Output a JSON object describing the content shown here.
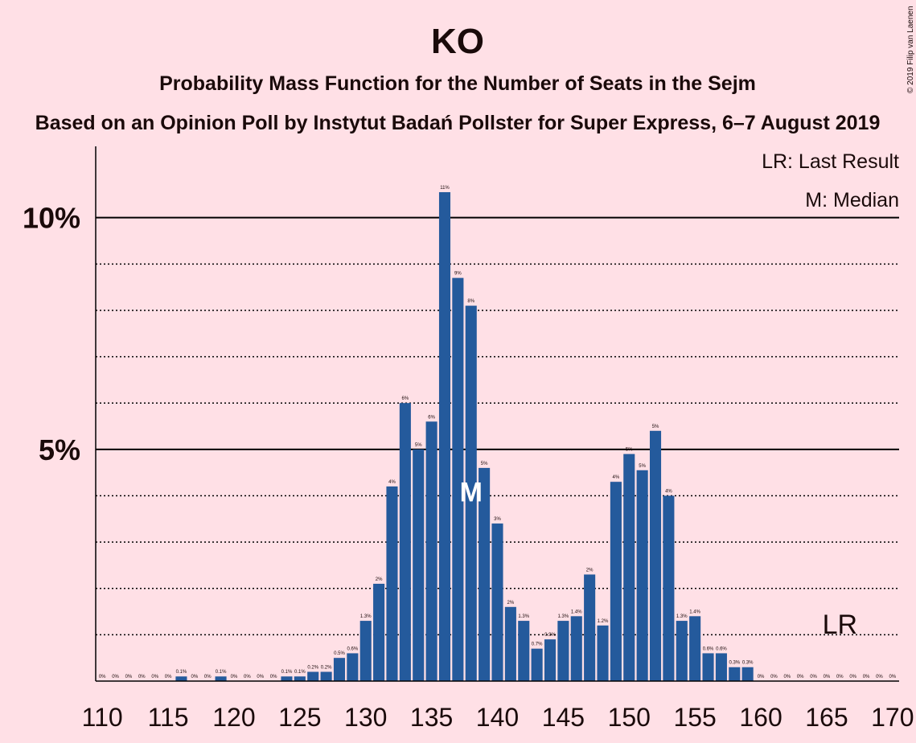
{
  "chart_data": {
    "type": "bar",
    "title": "KO",
    "subtitle": "Probability Mass Function for the Number of Seats in the Sejm",
    "subtitle2": "Based on an Opinion Poll by Instytut Badań Pollster for Super Express, 6–7 August 2019",
    "copyright": "© 2019 Filip van Laenen",
    "legend": [
      "LR: Last Result",
      "M: Median"
    ],
    "median": {
      "label": "M",
      "x": 138
    },
    "last_result": {
      "label": "LR",
      "x": 166
    },
    "color": "#245a9c",
    "x": [
      110,
      111,
      112,
      113,
      114,
      115,
      116,
      117,
      118,
      119,
      120,
      121,
      122,
      123,
      124,
      125,
      126,
      127,
      128,
      129,
      130,
      131,
      132,
      133,
      134,
      135,
      136,
      137,
      138,
      139,
      140,
      141,
      142,
      143,
      144,
      145,
      146,
      147,
      148,
      149,
      150,
      151,
      152,
      153,
      154,
      155,
      156,
      157,
      158,
      159,
      160,
      161,
      162,
      163,
      164,
      165,
      166,
      167,
      168,
      169,
      170
    ],
    "values": [
      0,
      0,
      0,
      0,
      0,
      0,
      0.1,
      0,
      0,
      0.1,
      0,
      0,
      0,
      0,
      0.1,
      0.1,
      0.2,
      0.2,
      0.5,
      0.6,
      1.3,
      2.1,
      4.2,
      6.0,
      5.0,
      5.6,
      10.55,
      8.7,
      8.1,
      4.6,
      3.4,
      1.6,
      1.3,
      0.7,
      0.9,
      1.3,
      1.4,
      2.3,
      1.2,
      4.3,
      4.9,
      4.55,
      5.4,
      4.0,
      1.3,
      1.4,
      0.6,
      0.6,
      0.3,
      0.3,
      0,
      0,
      0,
      0,
      0,
      0,
      0,
      0,
      0,
      0,
      0
    ],
    "value_labels": [
      "0%",
      "0%",
      "0%",
      "0%",
      "0%",
      "0%",
      "0.1%",
      "0%",
      "0%",
      "0.1%",
      "0%",
      "0%",
      "0%",
      "0%",
      "0.1%",
      "0.1%",
      "0.2%",
      "0.2%",
      "0.5%",
      "0.6%",
      "1.3%",
      "2%",
      "4%",
      "6%",
      "5%",
      "6%",
      "11%",
      "9%",
      "8%",
      "5%",
      "3%",
      "2%",
      "1.3%",
      "0.7%",
      "0.9%",
      "1.3%",
      "1.4%",
      "2%",
      "1.2%",
      "4%",
      "5%",
      "5%",
      "5%",
      "4%",
      "1.3%",
      "1.4%",
      "0.6%",
      "0.6%",
      "0.3%",
      "0.3%",
      "0%",
      "0%",
      "0%",
      "0%",
      "0%",
      "0%",
      "0%",
      "0%",
      "0%",
      "0%",
      "0%"
    ],
    "xlim": [
      109.5,
      170.5
    ],
    "xticks": [
      110,
      115,
      120,
      125,
      130,
      135,
      140,
      145,
      150,
      155,
      160,
      165,
      170
    ],
    "ylim": [
      0,
      11.4
    ],
    "yticks": [
      {
        "value": 5,
        "label": "5%"
      },
      {
        "value": 10,
        "label": "10%"
      }
    ],
    "minor_yticks": [
      1,
      2,
      3,
      4,
      6,
      7,
      8,
      9
    ]
  }
}
